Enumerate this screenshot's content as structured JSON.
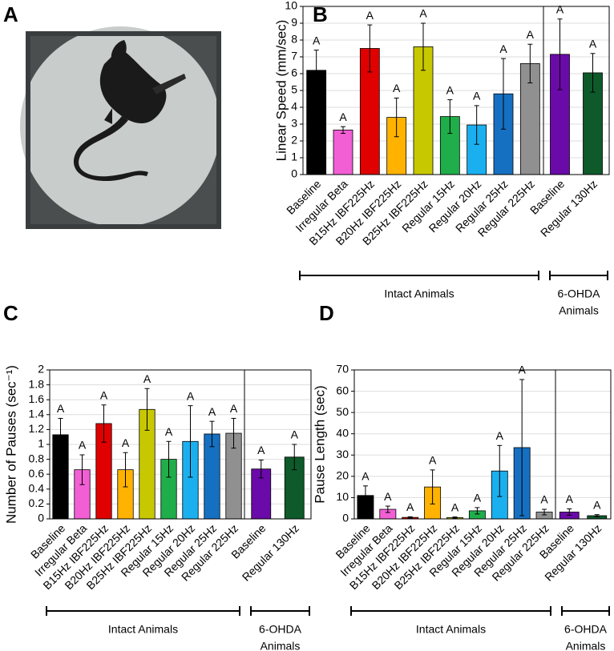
{
  "image_panel": {
    "panel_label": "A"
  },
  "chart_data": [
    {
      "type": "bar",
      "panel_label": "B",
      "y_label": "Linear Speed (mm/sec)",
      "categories": [
        "Baseline",
        "Irregular Beta",
        "B15Hz IBF225Hz",
        "B20Hz IBF225Hz",
        "B25Hz IBF225Hz",
        "Regular 15Hz",
        "Regular 20Hz",
        "Regular 25Hz",
        "Regular 225Hz",
        "Baseline",
        "Regular 130Hz"
      ],
      "values": [
        6.2,
        2.65,
        7.5,
        3.4,
        7.6,
        3.45,
        2.95,
        4.8,
        6.6,
        7.15,
        6.05
      ],
      "errors": [
        1.2,
        0.2,
        1.4,
        1.15,
        1.4,
        1.0,
        1.15,
        2.1,
        1.15,
        2.1,
        1.15
      ],
      "significance_labels": [
        "A",
        "A",
        "A",
        "A",
        "A",
        "A",
        "A",
        "A",
        "A",
        "A",
        "A"
      ],
      "colors": [
        "#000000",
        "#f25fd4",
        "#e00000",
        "#ffb300",
        "#c8c800",
        "#1fae4a",
        "#1ab0f0",
        "#1570c2",
        "#909090",
        "#6a0aa8",
        "#0e5a2a"
      ],
      "group_labels": [
        [
          "Intact Animals"
        ],
        [
          "6-OHDA",
          "Animals"
        ]
      ],
      "ylim": [
        0,
        10
      ],
      "yticks": [
        0,
        1,
        2,
        3,
        4,
        5,
        6,
        7,
        8,
        9,
        10
      ],
      "grid": true
    },
    {
      "type": "bar",
      "panel_label": "C",
      "y_label": "Number of Pauses (sec⁻¹)",
      "categories": [
        "Baseline",
        "Irregular Beta",
        "B15Hz IBF225Hz",
        "B20Hz IBF225Hz",
        "B25Hz IBF225Hz",
        "Regular 15Hz",
        "Regular 20Hz",
        "Regular 25Hz",
        "Regular 225Hz",
        "Baseline",
        "Regular 130Hz"
      ],
      "values": [
        1.13,
        0.66,
        1.28,
        0.66,
        1.47,
        0.8,
        1.04,
        1.14,
        1.15,
        0.67,
        0.83
      ],
      "errors": [
        0.22,
        0.2,
        0.25,
        0.23,
        0.28,
        0.24,
        0.48,
        0.17,
        0.2,
        0.12,
        0.17
      ],
      "significance_labels": [
        "A",
        "A",
        "A",
        "A",
        "A",
        "A",
        "A",
        "A",
        "A",
        "A",
        "A"
      ],
      "colors": [
        "#000000",
        "#f25fd4",
        "#e00000",
        "#ffb300",
        "#c8c800",
        "#1fae4a",
        "#1ab0f0",
        "#1570c2",
        "#909090",
        "#6a0aa8",
        "#0e5a2a"
      ],
      "group_labels": [
        [
          "Intact Animals"
        ],
        [
          "6-OHDA",
          "Animals"
        ]
      ],
      "ylim": [
        0,
        2
      ],
      "yticks": [
        0,
        0.2,
        0.4,
        0.6,
        0.8,
        1,
        1.2,
        1.4,
        1.6,
        1.8,
        2
      ],
      "grid": true
    },
    {
      "type": "bar",
      "panel_label": "D",
      "y_label": "Pause Length (sec)",
      "categories": [
        "Baseline",
        "Irregular Beta",
        "B15Hz IBF225Hz",
        "B20Hz IBF225Hz",
        "B25Hz IBF225Hz",
        "Regular 15Hz",
        "Regular 20Hz",
        "Regular 25Hz",
        "Regular 225Hz",
        "Baseline",
        "Regular 130Hz"
      ],
      "values": [
        11,
        4.5,
        0.7,
        15,
        0.6,
        3.8,
        22.5,
        33.5,
        3.2,
        3.2,
        1.5
      ],
      "errors": [
        4.5,
        1.5,
        0.3,
        8,
        0.3,
        1.5,
        12,
        32,
        1.3,
        1.5,
        0.5
      ],
      "significance_labels": [
        "A",
        "A",
        "A",
        "A",
        "A",
        "A",
        "A",
        "A",
        "A",
        "A",
        "A"
      ],
      "colors": [
        "#000000",
        "#f25fd4",
        "#e00000",
        "#ffb300",
        "#c8c800",
        "#1fae4a",
        "#1ab0f0",
        "#1570c2",
        "#909090",
        "#6a0aa8",
        "#0e5a2a"
      ],
      "group_labels": [
        [
          "Intact Animals"
        ],
        [
          "6-OHDA",
          "Animals"
        ]
      ],
      "ylim": [
        0,
        70
      ],
      "yticks": [
        0,
        10,
        20,
        30,
        40,
        50,
        60,
        70
      ],
      "grid": true
    }
  ]
}
